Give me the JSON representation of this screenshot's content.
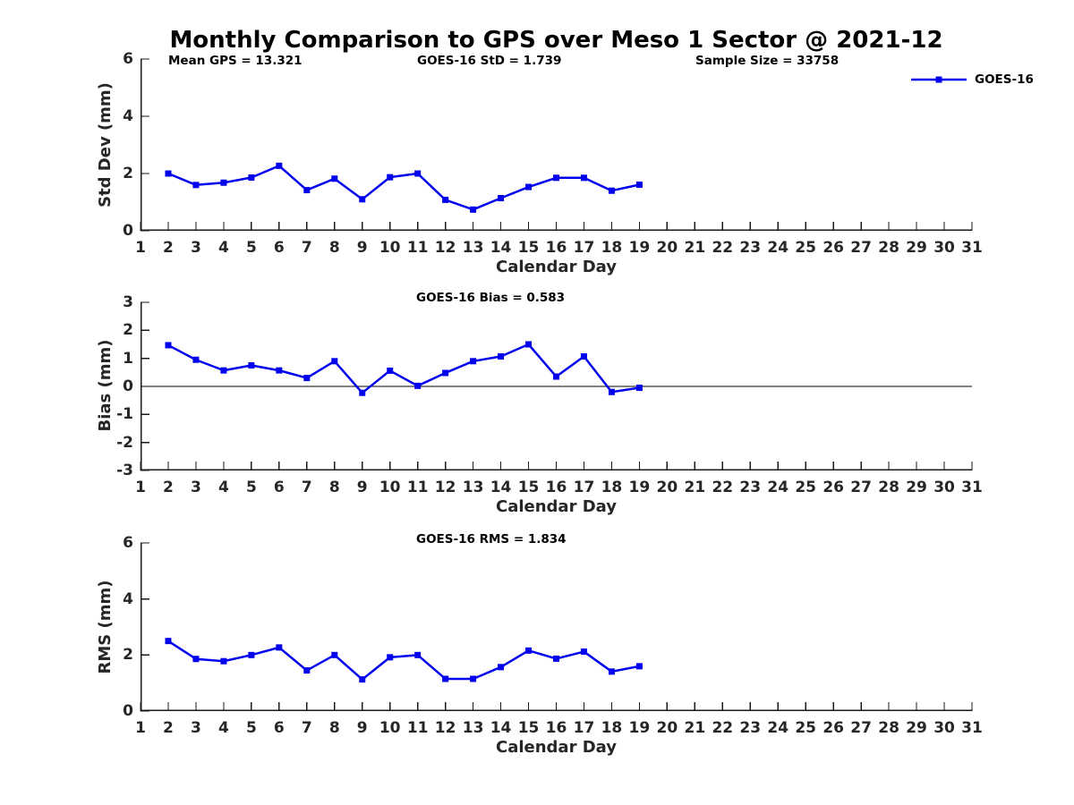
{
  "title": "Monthly Comparison to GPS over Meso 1 Sector @ 2021-12",
  "annotations": {
    "mean_gps": "Mean GPS = 13.321",
    "std": "GOES-16 StD = 1.739",
    "sample_size": "Sample Size = 33758"
  },
  "legend": {
    "label": "GOES-16",
    "color": "#0000EE"
  },
  "colors": {
    "series": "#0000EE",
    "axis": "#1a1a1a",
    "tick_text": "#262626"
  },
  "chart_data": [
    {
      "type": "line",
      "title": "",
      "xlabel": "Calendar Day",
      "ylabel": "Std Dev (mm)",
      "xlim": [
        1,
        31
      ],
      "ylim": [
        0,
        6
      ],
      "xticks": [
        1,
        2,
        3,
        4,
        5,
        6,
        7,
        8,
        9,
        10,
        11,
        12,
        13,
        14,
        15,
        16,
        17,
        18,
        19,
        20,
        21,
        22,
        23,
        24,
        25,
        26,
        27,
        28,
        29,
        30,
        31
      ],
      "yticks": [
        0,
        2,
        4,
        6
      ],
      "grid": false,
      "zero_line": false,
      "legend_position": "upper-right-outside",
      "series": [
        {
          "name": "GOES-16",
          "color": "#0000EE",
          "x": [
            2,
            3,
            4,
            5,
            6,
            7,
            8,
            9,
            10,
            11,
            12,
            13,
            14,
            15,
            16,
            17,
            18,
            19
          ],
          "y": [
            2.0,
            1.6,
            1.68,
            1.86,
            2.27,
            1.42,
            1.82,
            1.1,
            1.87,
            2.0,
            1.08,
            0.74,
            1.14,
            1.53,
            1.85,
            1.85,
            1.4,
            1.61
          ]
        }
      ]
    },
    {
      "type": "line",
      "title": "GOES-16 Bias = 0.583",
      "xlabel": "Calendar Day",
      "ylabel": "Bias (mm)",
      "xlim": [
        1,
        31
      ],
      "ylim": [
        -3,
        3
      ],
      "xticks": [
        1,
        2,
        3,
        4,
        5,
        6,
        7,
        8,
        9,
        10,
        11,
        12,
        13,
        14,
        15,
        16,
        17,
        18,
        19,
        20,
        21,
        22,
        23,
        24,
        25,
        26,
        27,
        28,
        29,
        30,
        31
      ],
      "yticks": [
        -3,
        -2,
        -1,
        0,
        1,
        2,
        3
      ],
      "grid": false,
      "zero_line": true,
      "series": [
        {
          "name": "GOES-16",
          "color": "#0000EE",
          "x": [
            2,
            3,
            4,
            5,
            6,
            7,
            8,
            9,
            10,
            11,
            12,
            13,
            14,
            15,
            16,
            17,
            18,
            19
          ],
          "y": [
            1.47,
            0.95,
            0.57,
            0.75,
            0.57,
            0.3,
            0.9,
            -0.23,
            0.56,
            0.02,
            0.48,
            0.9,
            1.07,
            1.5,
            0.35,
            1.07,
            -0.2,
            -0.05
          ]
        }
      ]
    },
    {
      "type": "line",
      "title": "GOES-16 RMS = 1.834",
      "xlabel": "Calendar Day",
      "ylabel": "RMS (mm)",
      "xlim": [
        1,
        31
      ],
      "ylim": [
        0,
        6
      ],
      "xticks": [
        1,
        2,
        3,
        4,
        5,
        6,
        7,
        8,
        9,
        10,
        11,
        12,
        13,
        14,
        15,
        16,
        17,
        18,
        19,
        20,
        21,
        22,
        23,
        24,
        25,
        26,
        27,
        28,
        29,
        30,
        31
      ],
      "yticks": [
        0,
        2,
        4,
        6
      ],
      "grid": false,
      "zero_line": false,
      "series": [
        {
          "name": "GOES-16",
          "color": "#0000EE",
          "x": [
            2,
            3,
            4,
            5,
            6,
            7,
            8,
            9,
            10,
            11,
            12,
            13,
            14,
            15,
            16,
            17,
            18,
            19
          ],
          "y": [
            2.5,
            1.86,
            1.78,
            2.0,
            2.27,
            1.45,
            2.0,
            1.13,
            1.92,
            2.0,
            1.15,
            1.15,
            1.57,
            2.16,
            1.87,
            2.12,
            1.41,
            1.6
          ]
        }
      ]
    }
  ]
}
